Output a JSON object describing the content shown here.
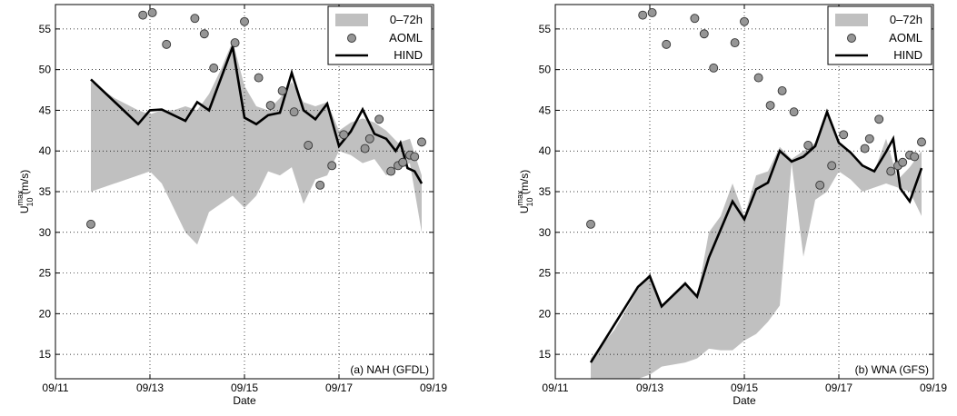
{
  "chart_data": [
    {
      "type": "line",
      "panel_label": "(a) NAH (GFDL)",
      "xlabel": "Date",
      "ylabel_main": "U",
      "ylabel_sup": "max",
      "ylabel_sub": "10",
      "ylabel_unit": " (m/s)",
      "xlim": [
        11,
        19
      ],
      "ylim": [
        12,
        58
      ],
      "xticks": [
        11,
        13,
        15,
        17,
        19
      ],
      "xtick_labels": [
        "09/11",
        "09/13",
        "09/15",
        "09/17",
        "09/19"
      ],
      "yticks": [
        15,
        20,
        25,
        30,
        35,
        40,
        45,
        50,
        55
      ],
      "ytick_labels": [
        "15",
        "20",
        "25",
        "30",
        "35",
        "40",
        "45",
        "50",
        "55"
      ],
      "grid": true,
      "legend_position": "top-right",
      "legend": [
        "0–72h",
        "AOML",
        "HIND"
      ],
      "series": [
        {
          "name": "0–72h",
          "kind": "band",
          "color": "#c0c0c0",
          "x": [
            11.75,
            12.25,
            12.75,
            13.0,
            13.25,
            13.5,
            13.75,
            14.0,
            14.25,
            14.5,
            14.75,
            15.0,
            15.25,
            15.5,
            15.75,
            16.0,
            16.25,
            16.5,
            16.75,
            17.0,
            17.25,
            17.5,
            17.75,
            18.0,
            18.25,
            18.5,
            18.75
          ],
          "upper": [
            48.5,
            46.5,
            45.0,
            44.5,
            45.0,
            45.0,
            45.5,
            45.0,
            47.0,
            50.0,
            53.5,
            48.0,
            45.5,
            45.0,
            46.5,
            48.5,
            46.0,
            45.5,
            46.0,
            42.5,
            43.5,
            44.0,
            43.5,
            42.5,
            41.0,
            41.5,
            37.0
          ],
          "lower": [
            35.0,
            36.0,
            37.0,
            37.5,
            36.0,
            33.0,
            30.0,
            28.5,
            32.5,
            33.5,
            34.5,
            33.0,
            34.5,
            37.5,
            37.0,
            38.0,
            33.5,
            36.5,
            37.0,
            40.0,
            39.5,
            38.5,
            39.0,
            37.0,
            38.0,
            38.5,
            30.0
          ]
        },
        {
          "name": "AOML",
          "kind": "points",
          "color": "#969696",
          "x": [
            11.75,
            12.85,
            13.05,
            13.35,
            13.95,
            14.15,
            14.35,
            14.8,
            15.0,
            15.3,
            15.55,
            15.8,
            16.05,
            16.35,
            16.6,
            16.85,
            17.1,
            17.55,
            17.65,
            17.85,
            18.1,
            18.25,
            18.35,
            18.5,
            18.6,
            18.75
          ],
          "y": [
            31.0,
            56.7,
            57.0,
            53.1,
            56.3,
            54.4,
            50.2,
            53.3,
            55.9,
            49.0,
            45.6,
            47.4,
            44.8,
            40.7,
            35.8,
            38.2,
            42.0,
            40.3,
            41.5,
            43.9,
            37.5,
            38.2,
            38.6,
            39.5,
            39.3,
            41.1
          ]
        },
        {
          "name": "HIND",
          "kind": "line",
          "color": "#000000",
          "x": [
            11.75,
            12.75,
            13.0,
            13.25,
            13.75,
            14.0,
            14.25,
            14.75,
            15.0,
            15.25,
            15.5,
            15.75,
            16.0,
            16.25,
            16.5,
            16.75,
            17.0,
            17.25,
            17.5,
            17.75,
            18.0,
            18.2,
            18.3,
            18.45,
            18.6,
            18.75
          ],
          "y": [
            48.8,
            43.3,
            45.0,
            45.1,
            43.7,
            46.0,
            45.0,
            52.8,
            44.1,
            43.3,
            44.4,
            44.7,
            49.6,
            45.0,
            43.9,
            45.8,
            40.6,
            42.4,
            45.1,
            42.1,
            41.5,
            40.0,
            41.0,
            37.9,
            37.5,
            36.0
          ]
        }
      ]
    },
    {
      "type": "line",
      "panel_label": "(b) WNA (GFS)",
      "xlabel": "Date",
      "ylabel_main": "U",
      "ylabel_sup": "max",
      "ylabel_sub": "10",
      "ylabel_unit": " (m/s)",
      "xlim": [
        11,
        19
      ],
      "ylim": [
        12,
        58
      ],
      "xticks": [
        11,
        13,
        15,
        17,
        19
      ],
      "xtick_labels": [
        "09/11",
        "09/13",
        "09/15",
        "09/17",
        "09/19"
      ],
      "yticks": [
        15,
        20,
        25,
        30,
        35,
        40,
        45,
        50,
        55
      ],
      "ytick_labels": [
        "15",
        "20",
        "25",
        "30",
        "35",
        "40",
        "45",
        "50",
        "55"
      ],
      "grid": true,
      "legend_position": "top-right",
      "legend": [
        "0–72h",
        "AOML",
        "HIND"
      ],
      "series": [
        {
          "name": "0–72h",
          "kind": "band",
          "color": "#c0c0c0",
          "x": [
            11.75,
            12.25,
            12.75,
            13.0,
            13.25,
            13.75,
            14.0,
            14.25,
            14.5,
            14.75,
            15.0,
            15.25,
            15.5,
            15.75,
            16.0,
            16.25,
            16.5,
            16.75,
            17.0,
            17.25,
            17.5,
            17.75,
            18.0,
            18.25,
            18.5,
            18.75
          ],
          "upper": [
            14.5,
            18.0,
            23.0,
            25.0,
            21.0,
            24.0,
            22.0,
            30.0,
            32.0,
            36.0,
            32.0,
            37.0,
            37.5,
            40.5,
            39.0,
            40.0,
            41.0,
            45.0,
            41.0,
            40.0,
            38.0,
            37.5,
            41.5,
            36.5,
            38.0,
            40.0
          ],
          "lower": [
            12.0,
            12.0,
            12.0,
            12.5,
            13.5,
            14.0,
            14.5,
            15.7,
            15.5,
            15.5,
            16.7,
            17.5,
            19.0,
            21.0,
            38.5,
            27.0,
            34.0,
            35.0,
            37.5,
            36.5,
            35.0,
            35.5,
            36.0,
            35.5,
            35.0,
            32.0
          ]
        },
        {
          "name": "AOML",
          "kind": "points",
          "color": "#969696",
          "x": [
            11.75,
            12.85,
            13.05,
            13.35,
            13.95,
            14.15,
            14.35,
            14.8,
            15.0,
            15.3,
            15.55,
            15.8,
            16.05,
            16.35,
            16.6,
            16.85,
            17.1,
            17.55,
            17.65,
            17.85,
            18.1,
            18.25,
            18.35,
            18.5,
            18.6,
            18.75
          ],
          "y": [
            31.0,
            56.7,
            57.0,
            53.1,
            56.3,
            54.4,
            50.2,
            53.3,
            55.9,
            49.0,
            45.6,
            47.4,
            44.8,
            40.7,
            35.8,
            38.2,
            42.0,
            40.3,
            41.5,
            43.9,
            37.5,
            38.2,
            38.6,
            39.5,
            39.3,
            41.1
          ]
        },
        {
          "name": "HIND",
          "kind": "line",
          "color": "#000000",
          "x": [
            11.75,
            12.75,
            13.0,
            13.25,
            13.75,
            14.0,
            14.25,
            14.75,
            15.0,
            15.25,
            15.5,
            15.75,
            16.0,
            16.25,
            16.5,
            16.75,
            17.0,
            17.25,
            17.5,
            17.75,
            18.0,
            18.15,
            18.3,
            18.5,
            18.75
          ],
          "y": [
            14.0,
            23.3,
            24.6,
            20.9,
            23.7,
            22.1,
            26.9,
            33.8,
            31.6,
            35.3,
            36.1,
            40.0,
            38.7,
            39.3,
            40.6,
            44.8,
            41.0,
            39.8,
            38.2,
            37.5,
            39.9,
            41.5,
            35.4,
            33.8,
            37.9
          ]
        }
      ]
    }
  ]
}
